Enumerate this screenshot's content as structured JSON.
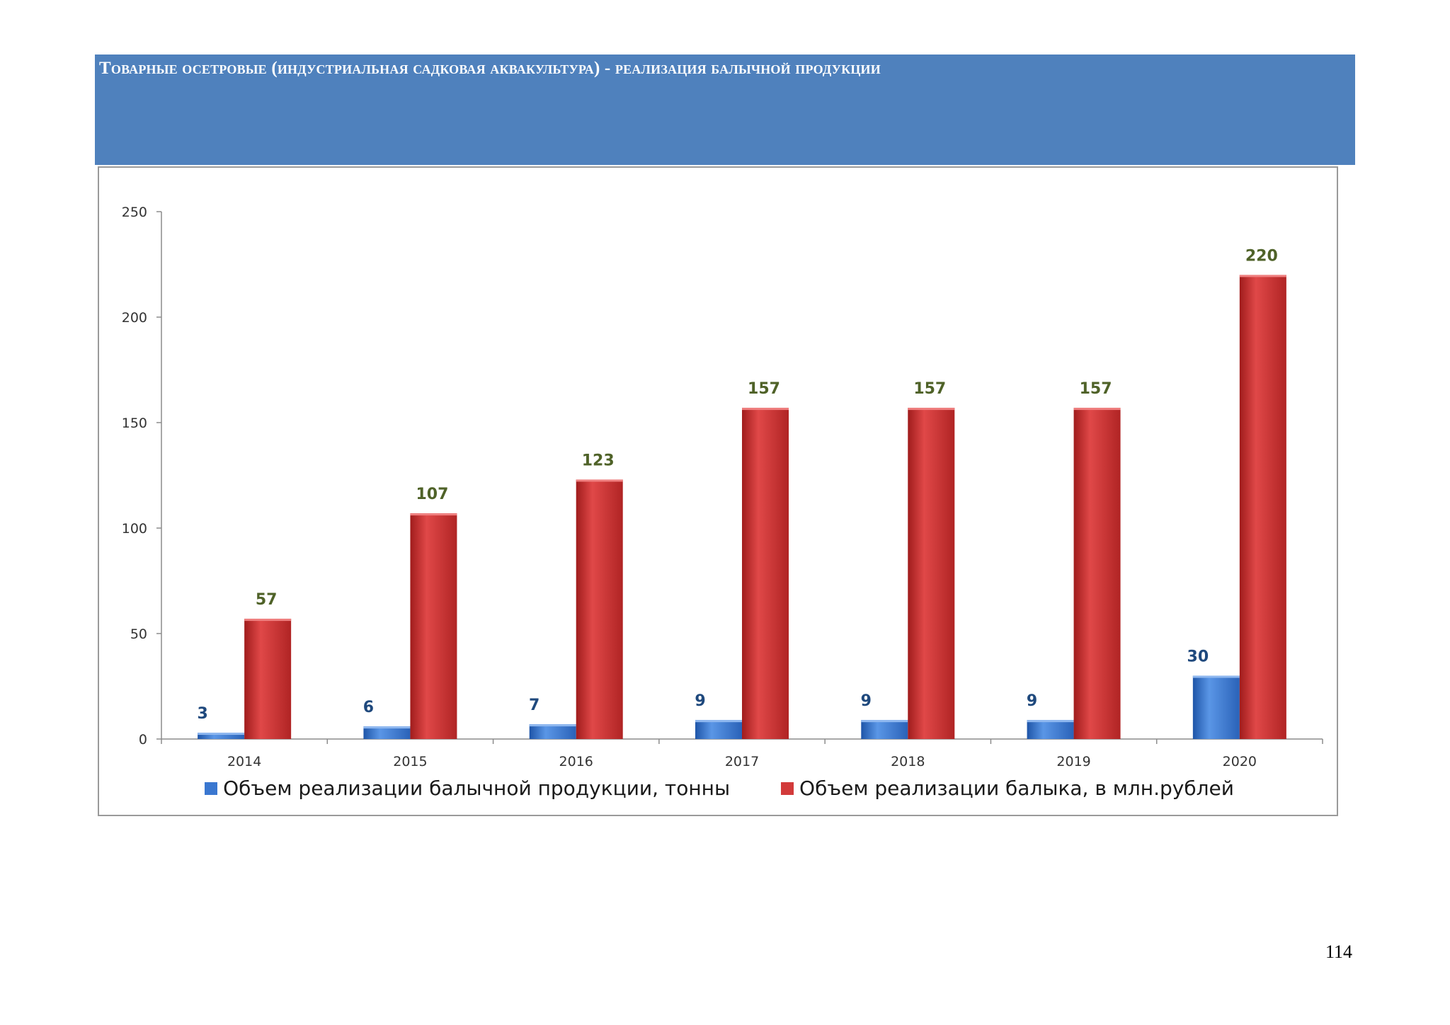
{
  "header": {
    "title": "Товарные осетровые (индустриальная садковая аквакультура) - реализация балычной продукции"
  },
  "page": {
    "number": "114"
  },
  "colors": {
    "header_band": "#4f81bd",
    "series_a": "#3a77d0",
    "series_b": "#d23a3a"
  },
  "chart_data": {
    "type": "bar",
    "title": "",
    "xlabel": "",
    "ylabel": "",
    "categories": [
      "2014",
      "2015",
      "2016",
      "2017",
      "2018",
      "2019",
      "2020"
    ],
    "ylim": [
      0,
      250
    ],
    "yticks": [
      0,
      50,
      100,
      150,
      200,
      250
    ],
    "grid": false,
    "legend_position": "bottom",
    "series": [
      {
        "name": "Объем реализации балычной продукции, тонны",
        "color": "#3a77d0",
        "values": [
          3,
          6,
          7,
          9,
          9,
          9,
          30
        ]
      },
      {
        "name": "Объем реализации балыка, в млн.рублей",
        "color": "#d23a3a",
        "values": [
          57,
          107,
          123,
          157,
          157,
          157,
          220
        ]
      }
    ]
  }
}
